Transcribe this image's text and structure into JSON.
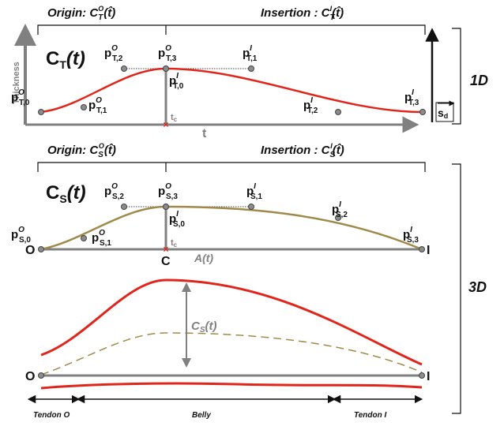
{
  "top_panel": {
    "origin_header": {
      "main": "Origin: C",
      "sub": "T",
      "sup": "O",
      "arg": "(t̂)"
    },
    "insertion_header": {
      "main": "Insertion : C",
      "sub": "T",
      "sup": "I",
      "arg": "(t̂)"
    },
    "curve_label": {
      "main": "C",
      "sub": "T",
      "arg": "(t)"
    },
    "y_axis_label": "Thickness",
    "x_axis_label": "t",
    "tc_label": "t",
    "tc_sub": "c",
    "sd_label": "s",
    "sd_sub": "d",
    "dimension_label": "1D",
    "control_points": [
      {
        "sub": "T,0",
        "sup": "O"
      },
      {
        "sub": "T,1",
        "sup": "O"
      },
      {
        "sub": "T,2",
        "sup": "O"
      },
      {
        "sub": "T,3",
        "sup": "O"
      },
      {
        "sub": "T,0",
        "sup": "I"
      },
      {
        "sub": "T,1",
        "sup": "I"
      },
      {
        "sub": "T,2",
        "sup": "I"
      },
      {
        "sub": "T,3",
        "sup": "I"
      }
    ]
  },
  "middle_panel": {
    "origin_header": {
      "main": "Origin: C",
      "sub": "S",
      "sup": "O",
      "arg": "(t̂)"
    },
    "insertion_header": {
      "main": "Insertion : C",
      "sub": "S",
      "sup": "I",
      "arg": "(t̂)"
    },
    "curve_label": {
      "main": "C",
      "sub": "S",
      "arg": "(t)"
    },
    "axis_label": "A(t)",
    "left_end": "O",
    "right_end": "I",
    "center_label": "C",
    "tc_label": "t",
    "tc_sub": "c",
    "control_points": [
      {
        "sub": "S,0",
        "sup": "O"
      },
      {
        "sub": "S,1",
        "sup": "O"
      },
      {
        "sub": "S,2",
        "sup": "O"
      },
      {
        "sub": "S,3",
        "sup": "O"
      },
      {
        "sub": "S,0",
        "sup": "I"
      },
      {
        "sub": "S,1",
        "sup": "I"
      },
      {
        "sub": "S,2",
        "sup": "I"
      },
      {
        "sub": "S,3",
        "sup": "I"
      }
    ]
  },
  "bottom_panel": {
    "curve_label": {
      "main": "C",
      "sub": "S",
      "arg": "(t)"
    },
    "left_end": "O",
    "right_end": "I",
    "segments": [
      "Tendon O",
      "Belly",
      "Tendon I"
    ],
    "dimension_label": "3D"
  },
  "colors": {
    "red": "#e0251b",
    "gold": "#a08a4a",
    "axis_grey": "#808080",
    "point_fill": "#8c8c8c",
    "ink": "#111111"
  }
}
